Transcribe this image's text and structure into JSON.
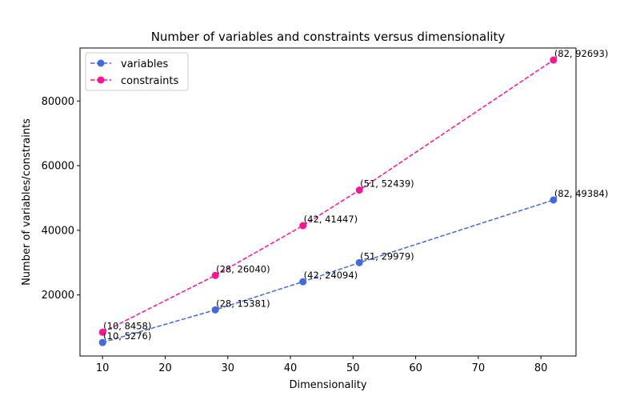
{
  "chart_data": {
    "type": "line",
    "title": "Number of variables and constraints versus dimensionality",
    "xlabel": "Dimensionality",
    "ylabel": "Number of variables/constraints",
    "x": [
      10,
      28,
      42,
      51,
      82
    ],
    "xlim": [
      6.4,
      85.6
    ],
    "ylim": [
      1105,
      96410
    ],
    "xticks": [
      10,
      20,
      30,
      40,
      50,
      60,
      70,
      80
    ],
    "yticks": [
      20000,
      40000,
      60000,
      80000
    ],
    "grid": false,
    "legend_position": "top-left",
    "series": [
      {
        "name": "variables",
        "color": "#4169e1",
        "line_style": "dashed",
        "marker": "circle",
        "values": [
          5276,
          15381,
          24094,
          29979,
          49384
        ],
        "labels": [
          "(10, 5276)",
          "(28, 15381)",
          "(42, 24094)",
          "(51, 29979)",
          "(82, 49384)"
        ]
      },
      {
        "name": "constraints",
        "color": "#ff1493",
        "line_style": "dashed",
        "marker": "circle",
        "values": [
          8458,
          26040,
          41447,
          52439,
          92693
        ],
        "labels": [
          "(10, 8458)",
          "(28, 26040)",
          "(42, 41447)",
          "(51, 52439)",
          "(82, 92693)"
        ]
      }
    ]
  }
}
